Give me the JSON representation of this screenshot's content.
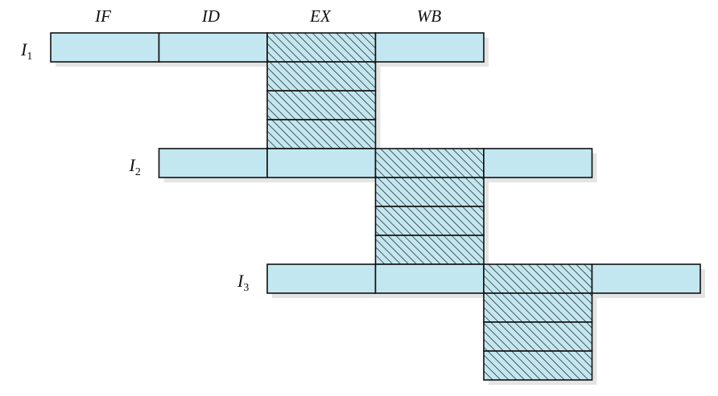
{
  "stage_headers": [
    "IF",
    "ID",
    "EX",
    "WB"
  ],
  "instructions": [
    {
      "name": "I",
      "sub": "1",
      "start_slot": 0
    },
    {
      "name": "I",
      "sub": "2",
      "start_slot": 1
    },
    {
      "name": "I",
      "sub": "3",
      "start_slot": 2
    }
  ],
  "execute_stack_count": 4,
  "colors": {
    "cell_fill": "#c3e7f0",
    "border": "#111111",
    "hatch": "#1a1a1a",
    "shadow": "#e4e4e4"
  }
}
